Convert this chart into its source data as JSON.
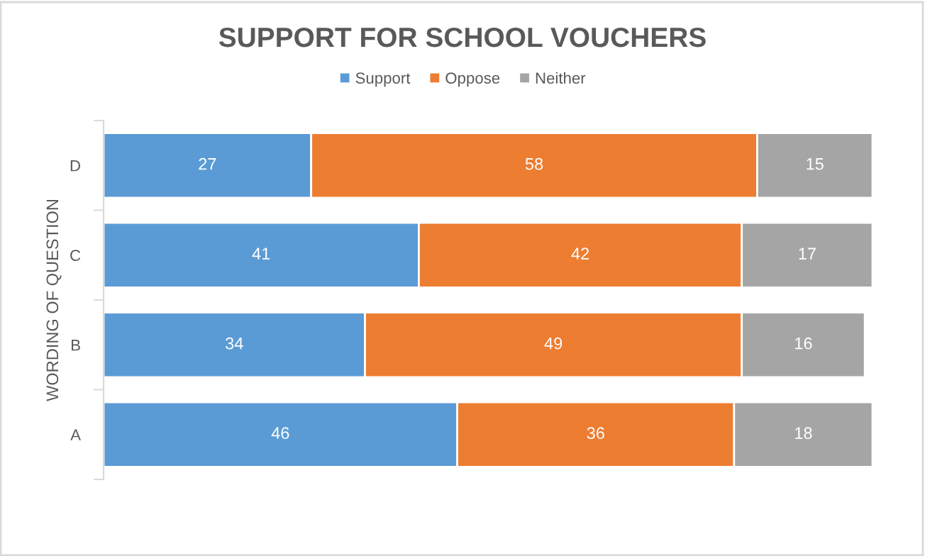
{
  "chart_data": {
    "type": "bar",
    "orientation": "horizontal",
    "stacked": true,
    "title": "SUPPORT FOR SCHOOL VOUCHERS",
    "ylabel": "WORDING OF QUESTION",
    "categories": [
      "D",
      "C",
      "B",
      "A"
    ],
    "series": [
      {
        "name": "Support",
        "color": "#5b9bd5",
        "values": [
          27,
          41,
          34,
          46
        ]
      },
      {
        "name": "Oppose",
        "color": "#ed7d31",
        "values": [
          58,
          42,
          49,
          36
        ]
      },
      {
        "name": "Neither",
        "color": "#a5a5a5",
        "values": [
          15,
          17,
          16,
          18
        ]
      }
    ],
    "data_labels": true,
    "legend": "top",
    "grid": false,
    "tick_labels": "y"
  }
}
